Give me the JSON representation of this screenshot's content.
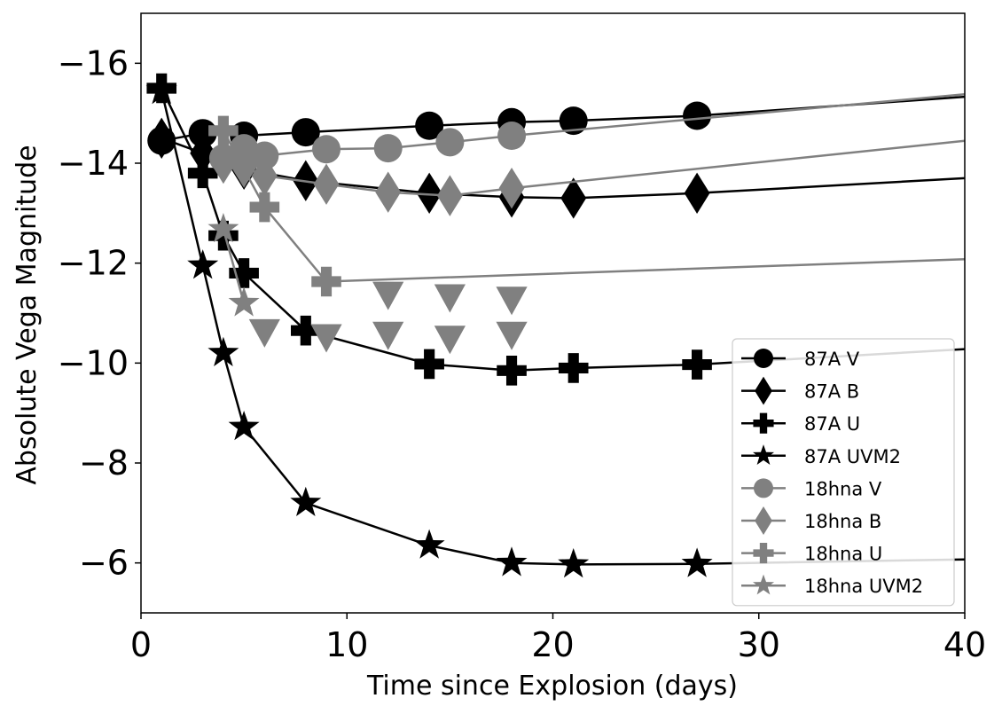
{
  "chart_data": {
    "type": "line",
    "title": "",
    "xlabel": "Time since Explosion (days)",
    "ylabel": "Absolute Vega Magnitude",
    "xlim": [
      0,
      40
    ],
    "ylim": [
      -5,
      -17
    ],
    "y_inverted": true,
    "xticks": [
      0,
      10,
      20,
      30,
      40
    ],
    "yticks": [
      -16,
      -14,
      -12,
      -10,
      -8,
      -6
    ],
    "grid": false,
    "legend_position": "lower-right",
    "series": [
      {
        "name": "87A V",
        "color": "#000000",
        "marker": "circle",
        "line": true,
        "x": [
          1,
          3,
          5,
          8,
          14,
          18,
          21,
          27,
          40
        ],
        "y": [
          -14.45,
          -14.6,
          -14.55,
          -14.62,
          -14.75,
          -14.82,
          -14.85,
          -14.95,
          -15.33
        ]
      },
      {
        "name": "87A B",
        "color": "#000000",
        "marker": "diamond",
        "line": true,
        "x": [
          1,
          3,
          5,
          8,
          14,
          18,
          21,
          27,
          40
        ],
        "y": [
          -14.5,
          -14.2,
          -13.88,
          -13.65,
          -13.4,
          -13.32,
          -13.3,
          -13.4,
          -13.7
        ]
      },
      {
        "name": "87A U",
        "color": "#000000",
        "marker": "plus",
        "line": true,
        "x": [
          1,
          3,
          4,
          5,
          8,
          14,
          18,
          21,
          27,
          40
        ],
        "y": [
          -15.5,
          -13.8,
          -12.55,
          -11.8,
          -10.65,
          -9.98,
          -9.85,
          -9.9,
          -9.97,
          -10.28
        ]
      },
      {
        "name": "87A UVM2",
        "color": "#000000",
        "marker": "star",
        "line": true,
        "x": [
          1,
          3,
          4,
          5,
          8,
          14,
          18,
          21,
          27,
          40
        ],
        "y": [
          -15.45,
          -11.95,
          -10.2,
          -8.72,
          -7.2,
          -6.35,
          -6.0,
          -5.97,
          -5.98,
          -6.07
        ]
      },
      {
        "name": "18hna V",
        "color": "#808080",
        "marker": "circle",
        "line": true,
        "x": [
          4,
          5,
          6,
          9,
          12,
          15,
          18,
          40
        ],
        "y": [
          -14.1,
          -14.3,
          -14.15,
          -14.28,
          -14.3,
          -14.42,
          -14.55,
          -15.38
        ]
      },
      {
        "name": "18hna B",
        "color": "#808080",
        "marker": "diamond",
        "line": true,
        "x": [
          4,
          5,
          6,
          9,
          12,
          15,
          18,
          40
        ],
        "y": [
          -14.0,
          -13.92,
          -13.75,
          -13.58,
          -13.42,
          -13.35,
          -13.5,
          -14.45
        ]
      },
      {
        "name": "18hna U",
        "color": "#808080",
        "marker": "plus",
        "line": true,
        "x": [
          4,
          6,
          9,
          40
        ],
        "y": [
          -14.65,
          -13.12,
          -11.63,
          -12.08
        ]
      },
      {
        "name": "18hna UVM2",
        "color": "#808080",
        "marker": "star",
        "line": true,
        "x": [
          4,
          5
        ],
        "y": [
          -12.68,
          -11.2
        ]
      },
      {
        "name": "",
        "color": "#808080",
        "marker": "triangle-down",
        "line": false,
        "x": [
          6,
          9,
          12,
          15,
          18
        ],
        "y": [
          -10.65,
          -10.55,
          -10.6,
          -10.52,
          -10.6
        ]
      },
      {
        "name": "",
        "color": "#808080",
        "marker": "triangle-down",
        "line": false,
        "x": [
          12,
          15,
          18
        ],
        "y": [
          -11.4,
          -11.35,
          -11.3
        ]
      }
    ]
  }
}
